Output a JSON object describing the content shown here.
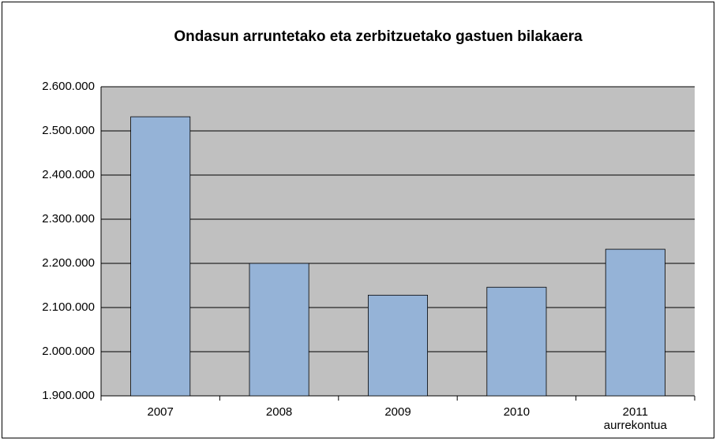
{
  "chart_data": {
    "type": "bar",
    "title": "Ondasun arruntetako eta zerbitzuetako gastuen bilakaera",
    "categories": [
      "2007",
      "2008",
      "2009",
      "2010",
      "2011\naurrekontua"
    ],
    "values": [
      2532000,
      2200000,
      2128000,
      2146000,
      2232000
    ],
    "color": "#95b3d7",
    "ylim": [
      1900000,
      2600000
    ],
    "yticks": [
      {
        "value": 1900000,
        "label": "1.900.000"
      },
      {
        "value": 2000000,
        "label": "2.000.000"
      },
      {
        "value": 2100000,
        "label": "2.100.000"
      },
      {
        "value": 2200000,
        "label": "2.200.000"
      },
      {
        "value": 2300000,
        "label": "2.300.000"
      },
      {
        "value": 2400000,
        "label": "2.400.000"
      },
      {
        "value": 2500000,
        "label": "2.500.000"
      },
      {
        "value": 2600000,
        "label": "2.600.000"
      }
    ],
    "grid": true
  }
}
